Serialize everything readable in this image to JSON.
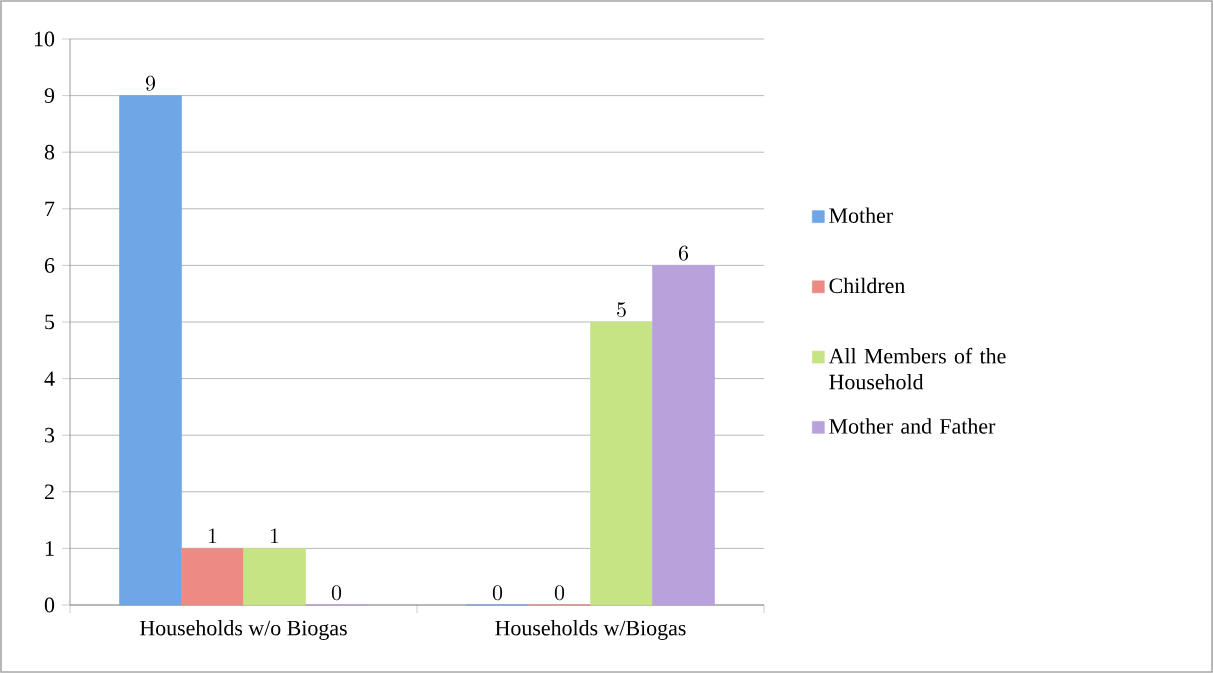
{
  "chart_data": {
    "type": "bar",
    "categories": [
      "Households w/o Biogas",
      "Households w/Biogas"
    ],
    "series": [
      {
        "name": "Mother",
        "color": "#6fa6e6",
        "values": [
          9,
          0
        ]
      },
      {
        "name": "Children",
        "color": "#ec8a84",
        "values": [
          1,
          0
        ]
      },
      {
        "name": "All Members of the Household",
        "color": "#c6e484",
        "values": [
          1,
          5
        ]
      },
      {
        "name": "Mother and Father",
        "color": "#b9a2dc",
        "values": [
          0,
          6
        ]
      }
    ],
    "ylim": [
      0,
      10
    ],
    "yticks": [
      0,
      1,
      2,
      3,
      4,
      5,
      6,
      7,
      8,
      9,
      10
    ],
    "grid": "y",
    "legend": "right",
    "data_labels": true
  }
}
